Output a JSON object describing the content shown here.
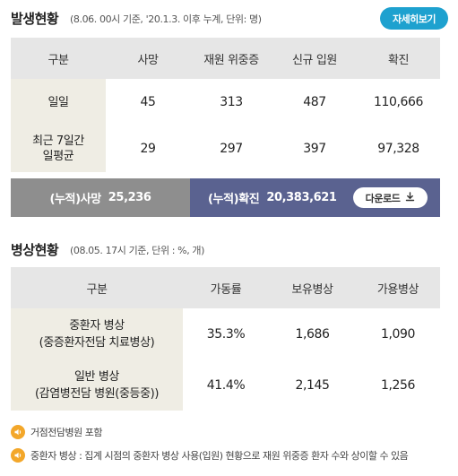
{
  "section1": {
    "title": "발생현황",
    "subtitle": "(8.06. 00시 기준, '20.1.3. 이후 누계, 단위: 명)",
    "detail_button": "자세히보기",
    "headers": [
      "구분",
      "사망",
      "재원 위중증",
      "신규 입원",
      "확진"
    ],
    "rows": [
      {
        "label": "일일",
        "values": [
          "45",
          "313",
          "487",
          "110,666"
        ]
      },
      {
        "label_line1": "최근 7일간",
        "label_line2": "일평균",
        "values": [
          "29",
          "297",
          "397",
          "97,328"
        ]
      }
    ],
    "cumulative": {
      "deaths_label": "(누적)사망",
      "deaths_value": "25,236",
      "confirmed_label": "(누적)확진",
      "confirmed_value": "20,383,621",
      "download_button": "다운로드"
    }
  },
  "section2": {
    "title": "병상현황",
    "subtitle": "(08.05. 17시 기준, 단위 : %, 개)",
    "headers": [
      "구분",
      "가동률",
      "보유병상",
      "가용병상"
    ],
    "rows": [
      {
        "label_line1": "중환자 병상",
        "label_line2": "(중증환자전담 치료병상)",
        "values": [
          "35.3%",
          "1,686",
          "1,090"
        ]
      },
      {
        "label_line1": "일반 병상",
        "label_line2": "(감염병전담 병원(중등중))",
        "values": [
          "41.4%",
          "2,145",
          "1,256"
        ]
      }
    ]
  },
  "notes": [
    "거점전담병원 포함",
    "중환자 병상 : 집계 시점의 중환자 병상 사용(입원) 현황으로 재원 위중증 환자 수와 상이할 수 있음"
  ],
  "colors": {
    "accent": "#1ea1cf",
    "deaths_bg": "#8e8e8e",
    "confirmed_bg": "#5a6290",
    "label_bg": "#efede4",
    "header_bg": "#e6e6e6",
    "note_icon": "#f3a72a"
  },
  "icons": {
    "download": "download-icon",
    "note": "speaker-icon"
  }
}
